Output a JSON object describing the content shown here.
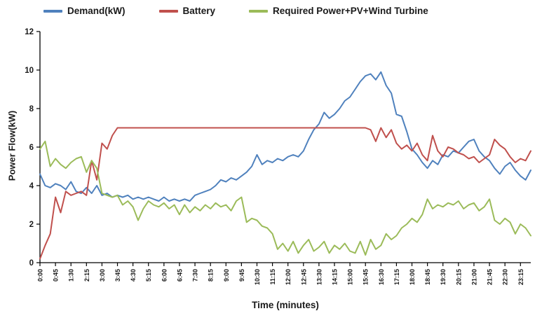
{
  "chart_data": {
    "type": "line",
    "title": "",
    "xlabel": "Time (minutes)",
    "ylabel": "Power Flow(kW)",
    "ylim": [
      0,
      12
    ],
    "yticks": [
      0,
      2,
      4,
      6,
      8,
      10,
      12
    ],
    "grid": false,
    "legend_position": "top",
    "x_minutes_step": 15,
    "x_tick_every": 3,
    "x_ticklabels": [
      "0:00",
      "0:45",
      "1:30",
      "2:15",
      "3:00",
      "3:45",
      "4:30",
      "5:15",
      "6:00",
      "6:45",
      "7:30",
      "8:15",
      "9:00",
      "9:45",
      "10:30",
      "11:15",
      "12:00",
      "12:45",
      "13:30",
      "14:15",
      "15:00",
      "15:45",
      "16:30",
      "17:15",
      "18:00",
      "18:45",
      "19:30",
      "20:15",
      "21:00",
      "21:45",
      "22:30",
      "23:15"
    ],
    "series": [
      {
        "name": "Demand(kW)",
        "color": "#4F81BD",
        "values": [
          4.6,
          4.0,
          3.9,
          4.1,
          4.0,
          3.8,
          4.2,
          3.7,
          3.6,
          3.9,
          3.6,
          4.0,
          3.5,
          3.6,
          3.4,
          3.5,
          3.4,
          3.5,
          3.3,
          3.4,
          3.3,
          3.4,
          3.3,
          3.2,
          3.4,
          3.2,
          3.3,
          3.2,
          3.3,
          3.2,
          3.5,
          3.6,
          3.7,
          3.8,
          4.0,
          4.3,
          4.2,
          4.4,
          4.3,
          4.5,
          4.7,
          5.0,
          5.6,
          5.1,
          5.3,
          5.2,
          5.4,
          5.3,
          5.5,
          5.6,
          5.5,
          5.8,
          6.4,
          6.9,
          7.2,
          7.8,
          7.5,
          7.7,
          8.0,
          8.4,
          8.6,
          9.0,
          9.4,
          9.7,
          9.8,
          9.5,
          9.9,
          9.2,
          8.8,
          7.7,
          7.6,
          6.8,
          5.9,
          5.6,
          5.2,
          4.9,
          5.3,
          5.1,
          5.6,
          5.5,
          5.8,
          5.7,
          6.0,
          6.3,
          6.4,
          5.8,
          5.5,
          5.3,
          4.9,
          4.6,
          5.0,
          5.2,
          4.8,
          4.5,
          4.3,
          4.8
        ]
      },
      {
        "name": "Battery",
        "color": "#C0504D",
        "values": [
          0.2,
          0.9,
          1.5,
          3.4,
          2.6,
          3.7,
          3.5,
          3.6,
          3.7,
          3.5,
          5.3,
          4.3,
          6.2,
          5.9,
          6.6,
          7.0,
          7.0,
          7.0,
          7.0,
          7.0,
          7.0,
          7.0,
          7.0,
          7.0,
          7.0,
          7.0,
          7.0,
          7.0,
          7.0,
          7.0,
          7.0,
          7.0,
          7.0,
          7.0,
          7.0,
          7.0,
          7.0,
          7.0,
          7.0,
          7.0,
          7.0,
          7.0,
          7.0,
          7.0,
          7.0,
          7.0,
          7.0,
          7.0,
          7.0,
          7.0,
          7.0,
          7.0,
          7.0,
          7.0,
          7.0,
          7.0,
          7.0,
          7.0,
          7.0,
          7.0,
          7.0,
          7.0,
          7.0,
          7.0,
          6.9,
          6.3,
          7.0,
          6.5,
          6.9,
          6.2,
          5.9,
          6.1,
          5.8,
          6.2,
          5.6,
          5.3,
          6.6,
          5.8,
          5.5,
          6.0,
          5.9,
          5.7,
          5.6,
          5.4,
          5.5,
          5.2,
          5.4,
          5.6,
          6.4,
          6.1,
          5.9,
          5.5,
          5.2,
          5.4,
          5.3,
          5.8
        ]
      },
      {
        "name": "Required Power+PV+Wind Turbine",
        "color": "#9BBB59",
        "values": [
          5.9,
          6.3,
          5.0,
          5.4,
          5.1,
          4.9,
          5.2,
          5.4,
          5.5,
          4.7,
          5.3,
          4.9,
          3.6,
          3.5,
          3.4,
          3.5,
          3.0,
          3.2,
          2.9,
          2.2,
          2.8,
          3.2,
          3.0,
          2.9,
          3.1,
          2.8,
          3.0,
          2.5,
          3.0,
          2.6,
          2.9,
          2.7,
          3.0,
          2.8,
          3.1,
          2.9,
          3.0,
          2.7,
          3.2,
          3.4,
          2.1,
          2.3,
          2.2,
          1.9,
          1.8,
          1.5,
          0.7,
          1.0,
          0.6,
          1.1,
          0.5,
          0.9,
          1.2,
          0.6,
          0.8,
          1.1,
          0.5,
          0.9,
          0.7,
          1.0,
          0.6,
          0.5,
          1.1,
          0.4,
          1.2,
          0.7,
          0.9,
          1.5,
          1.2,
          1.4,
          1.8,
          2.0,
          2.3,
          2.1,
          2.5,
          3.3,
          2.8,
          3.0,
          2.9,
          3.1,
          3.0,
          3.2,
          2.8,
          3.0,
          3.1,
          2.7,
          2.9,
          3.3,
          2.2,
          2.0,
          2.3,
          2.1,
          1.5,
          2.0,
          1.8,
          1.4
        ]
      }
    ]
  }
}
